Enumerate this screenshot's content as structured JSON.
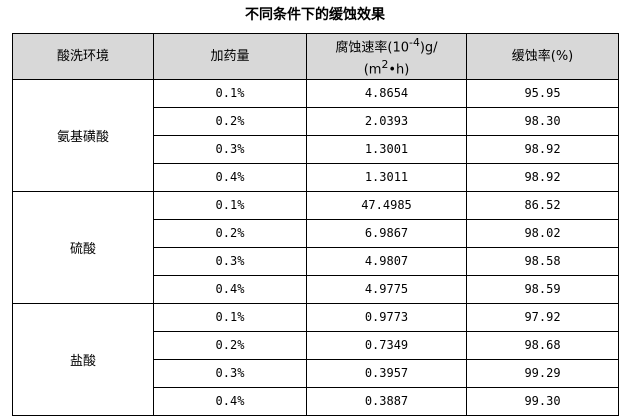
{
  "title": "不同条件下的缓蚀效果",
  "headers": {
    "env": "酸洗环境",
    "dose": "加药量",
    "rate_line1_pre": "腐蚀速率(10",
    "rate_line1_sup": "-4",
    "rate_line1_post": ")g/",
    "rate_line2_pre": "(m",
    "rate_line2_sup": "2",
    "rate_line2_post": "•h)",
    "efficiency": "缓蚀率(%)"
  },
  "groups": [
    {
      "env": "氨基磺酸",
      "rows": [
        {
          "dose": "0.1%",
          "rate": "4.8654",
          "efficiency": "95.95"
        },
        {
          "dose": "0.2%",
          "rate": "2.0393",
          "efficiency": "98.30"
        },
        {
          "dose": "0.3%",
          "rate": "1.3001",
          "efficiency": "98.92"
        },
        {
          "dose": "0.4%",
          "rate": "1.3011",
          "efficiency": "98.92"
        }
      ]
    },
    {
      "env": "硫酸",
      "rows": [
        {
          "dose": "0.1%",
          "rate": "47.4985",
          "efficiency": "86.52"
        },
        {
          "dose": "0.2%",
          "rate": "6.9867",
          "efficiency": "98.02"
        },
        {
          "dose": "0.3%",
          "rate": "4.9807",
          "efficiency": "98.58"
        },
        {
          "dose": "0.4%",
          "rate": "4.9775",
          "efficiency": "98.59"
        }
      ]
    },
    {
      "env": "盐酸",
      "rows": [
        {
          "dose": "0.1%",
          "rate": "0.9773",
          "efficiency": "97.92"
        },
        {
          "dose": "0.2%",
          "rate": "0.7349",
          "efficiency": "98.68"
        },
        {
          "dose": "0.3%",
          "rate": "0.3957",
          "efficiency": "99.29"
        },
        {
          "dose": "0.4%",
          "rate": "0.3887",
          "efficiency": "99.30"
        }
      ]
    }
  ]
}
